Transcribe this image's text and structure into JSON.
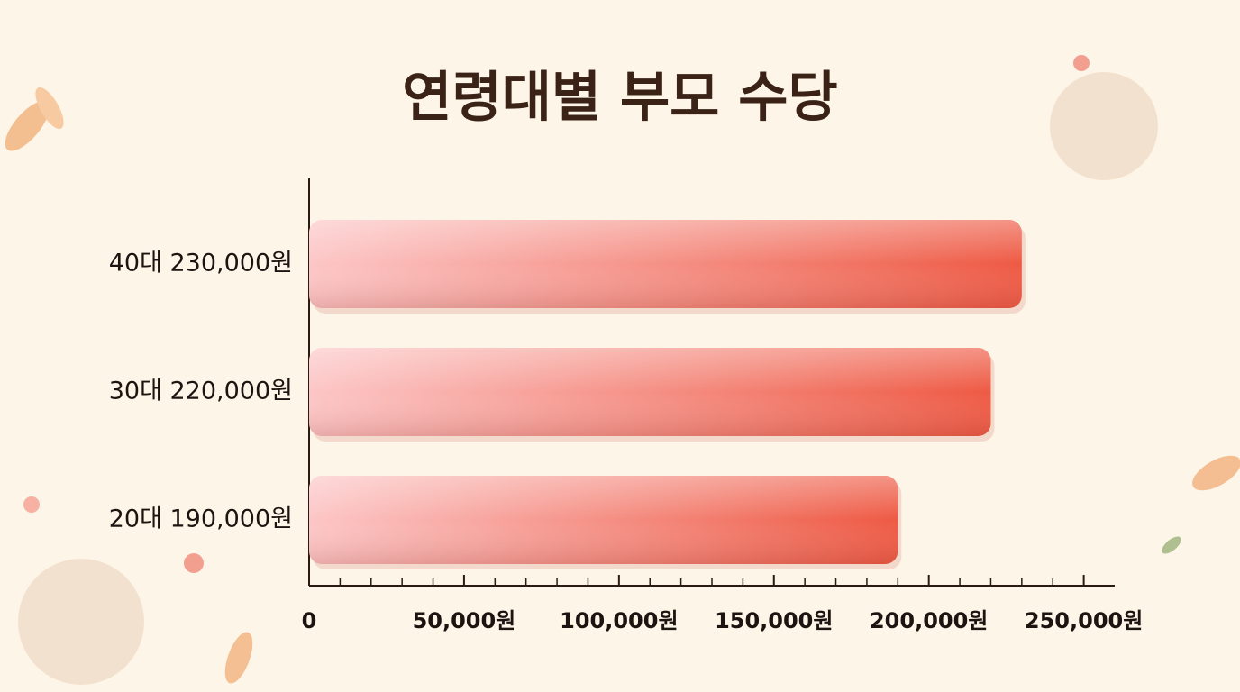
{
  "chart_data": {
    "type": "barh",
    "title": "연령대별 부모 수당",
    "categories": [
      "40대 230,000원",
      "30대 220,000원",
      "20대 190,000원"
    ],
    "values": [
      230000,
      220000,
      190000
    ],
    "color": "#ee5a44",
    "xlim": [
      0,
      260000
    ],
    "xticks": [
      0,
      {
        "value": 50000,
        "label": "50,000원"
      },
      {
        "value": 100000,
        "label": "100,000원"
      },
      {
        "value": 150000,
        "label": "150,000원"
      },
      {
        "value": 200000,
        "label": "200,000원"
      },
      {
        "value": 250000,
        "label": "250,000원"
      }
    ],
    "xminorticks": [
      10000,
      20000,
      30000,
      40000,
      60000,
      70000,
      80000,
      90000,
      110000,
      120000,
      130000,
      140000,
      160000,
      170000,
      180000,
      190000,
      210000,
      220000,
      230000,
      240000
    ]
  }
}
